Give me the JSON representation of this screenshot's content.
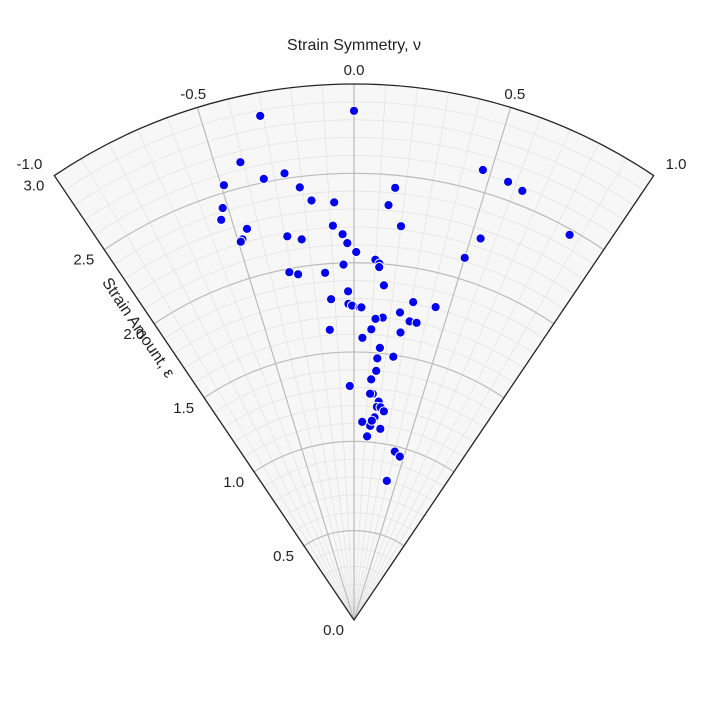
{
  "chart_data": {
    "type": "scatter",
    "coordinate_system": "polar-sector",
    "x_axis": {
      "title": "Strain Symmetry, ν",
      "range": [
        -1.0,
        1.0
      ],
      "ticks": [
        -1.0,
        -0.5,
        0.0,
        0.5,
        1.0
      ],
      "tick_labels": [
        "-1.0",
        "-0.5",
        "0.0",
        "0.5",
        "1.0"
      ]
    },
    "y_axis": {
      "title": "Strain Amount, ε",
      "range": [
        0.0,
        3.0
      ],
      "ticks": [
        0.0,
        0.5,
        1.0,
        1.5,
        2.0,
        2.5,
        3.0
      ],
      "tick_labels": [
        "0.0",
        "0.5",
        "1.0",
        "1.5",
        "2.0",
        "2.5",
        "3.0"
      ]
    },
    "grid": true,
    "colors": {
      "marker": "#0000ee",
      "marker_edge": "#ffffff",
      "background": "#f7f7f7",
      "major_grid": "#bbbbbb",
      "minor_grid": "#e4e4e4",
      "frame": "#222222"
    },
    "points": [
      {
        "v": 0.0,
        "e": 2.85
      },
      {
        "v": -0.31,
        "e": 2.87
      },
      {
        "v": -0.41,
        "e": 2.64
      },
      {
        "v": -0.34,
        "e": 2.52
      },
      {
        "v": -0.26,
        "e": 2.53
      },
      {
        "v": -0.49,
        "e": 2.54
      },
      {
        "v": -0.52,
        "e": 2.42
      },
      {
        "v": -0.54,
        "e": 2.36
      },
      {
        "v": -0.21,
        "e": 2.44
      },
      {
        "v": -0.17,
        "e": 2.36
      },
      {
        "v": -0.08,
        "e": 2.34
      },
      {
        "v": -0.45,
        "e": 2.27
      },
      {
        "v": -0.48,
        "e": 2.22
      },
      {
        "v": -0.49,
        "e": 2.21
      },
      {
        "v": -0.29,
        "e": 2.18
      },
      {
        "v": -0.23,
        "e": 2.15
      },
      {
        "v": -0.09,
        "e": 2.21
      },
      {
        "v": -0.05,
        "e": 2.16
      },
      {
        "v": -0.03,
        "e": 2.11
      },
      {
        "v": -0.05,
        "e": 1.99
      },
      {
        "v": -0.14,
        "e": 1.95
      },
      {
        "v": -0.27,
        "e": 1.96
      },
      {
        "v": -0.31,
        "e": 1.98
      },
      {
        "v": -0.12,
        "e": 1.8
      },
      {
        "v": -0.14,
        "e": 1.63
      },
      {
        "v": -0.03,
        "e": 1.84
      },
      {
        "v": -0.03,
        "e": 1.77
      },
      {
        "v": -0.01,
        "e": 1.76
      },
      {
        "v": 0.03,
        "e": 1.75
      },
      {
        "v": 0.04,
        "e": 1.75
      },
      {
        "v": 0.01,
        "e": 2.06
      },
      {
        "v": 0.1,
        "e": 2.02
      },
      {
        "v": 0.12,
        "e": 2.0
      },
      {
        "v": 0.12,
        "e": 1.98
      },
      {
        "v": 0.16,
        "e": 2.43
      },
      {
        "v": 0.14,
        "e": 2.33
      },
      {
        "v": 0.2,
        "e": 2.22
      },
      {
        "v": 0.15,
        "e": 1.88
      },
      {
        "v": 0.25,
        "e": 1.74
      },
      {
        "v": 0.31,
        "e": 1.81
      },
      {
        "v": 0.31,
        "e": 1.7
      },
      {
        "v": 0.27,
        "e": 1.63
      },
      {
        "v": 0.16,
        "e": 1.7
      },
      {
        "v": 0.12,
        "e": 1.69
      },
      {
        "v": 0.1,
        "e": 1.63
      },
      {
        "v": 0.05,
        "e": 1.58
      },
      {
        "v": 0.16,
        "e": 1.53
      },
      {
        "v": 0.15,
        "e": 1.47
      },
      {
        "v": 0.25,
        "e": 1.49
      },
      {
        "v": 0.15,
        "e": 1.4
      },
      {
        "v": 0.12,
        "e": 1.35
      },
      {
        "v": 0.14,
        "e": 1.27
      },
      {
        "v": 0.19,
        "e": 1.23
      },
      {
        "v": 0.12,
        "e": 1.27
      },
      {
        "v": 0.18,
        "e": 1.2
      },
      {
        "v": 0.21,
        "e": 1.2
      },
      {
        "v": 0.24,
        "e": 1.18
      },
      {
        "v": 0.17,
        "e": 1.14
      },
      {
        "v": 0.23,
        "e": 1.08
      },
      {
        "v": -0.03,
        "e": 1.31
      },
      {
        "v": 0.07,
        "e": 1.11
      },
      {
        "v": 0.12,
        "e": 1.03
      },
      {
        "v": 0.14,
        "e": 1.09
      },
      {
        "v": 0.15,
        "e": 1.12
      },
      {
        "v": 0.47,
        "e": 2.62
      },
      {
        "v": 0.57,
        "e": 2.6
      },
      {
        "v": 0.63,
        "e": 2.58
      },
      {
        "v": 0.54,
        "e": 2.25
      },
      {
        "v": 0.5,
        "e": 2.12
      },
      {
        "v": 0.86,
        "e": 2.47
      },
      {
        "v": 0.43,
        "e": 1.81
      },
      {
        "v": 0.35,
        "e": 1.7
      },
      {
        "v": 0.4,
        "e": 0.97
      },
      {
        "v": 0.46,
        "e": 0.95
      },
      {
        "v": 0.39,
        "e": 0.8
      }
    ]
  }
}
